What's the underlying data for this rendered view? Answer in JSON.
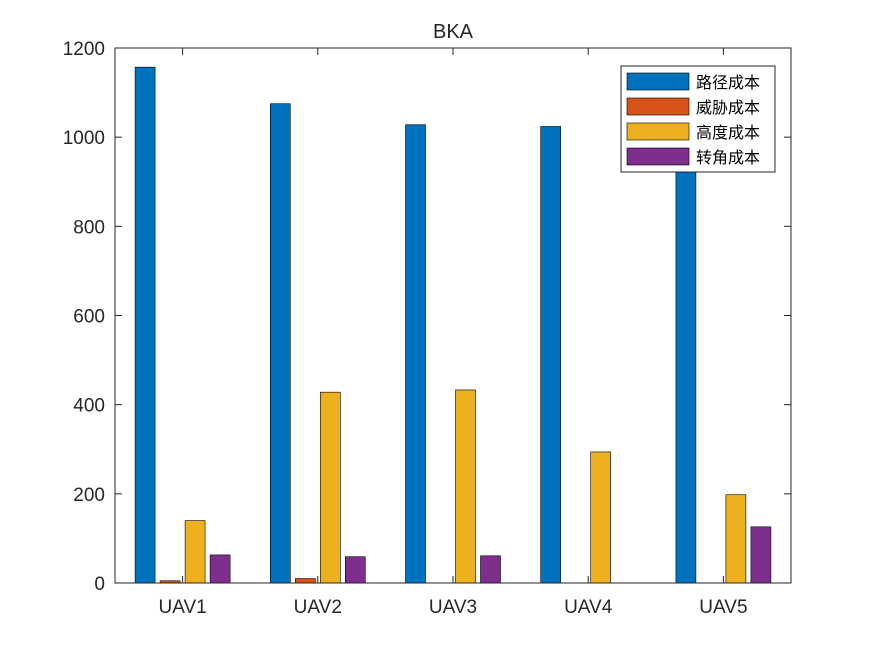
{
  "chart_data": {
    "type": "bar",
    "title": "BKA",
    "xlabel": "",
    "ylabel": "",
    "categories": [
      "UAV1",
      "UAV2",
      "UAV3",
      "UAV4",
      "UAV5"
    ],
    "ylim": [
      0,
      1200
    ],
    "yticks": [
      0,
      200,
      400,
      600,
      800,
      1000,
      1200
    ],
    "grid": false,
    "legend_position": "top-right",
    "series": [
      {
        "name": "路径成本",
        "color": "#0072BD",
        "values": [
          1157,
          1075,
          1028,
          1024,
          1010
        ]
      },
      {
        "name": "威胁成本",
        "color": "#D95319",
        "values": [
          5,
          10,
          0,
          0,
          0
        ]
      },
      {
        "name": "高度成本",
        "color": "#EDB120",
        "values": [
          140,
          428,
          433,
          294,
          198
        ]
      },
      {
        "name": "转角成本",
        "color": "#7E2F8E",
        "values": [
          63,
          59,
          61,
          0,
          126
        ]
      }
    ]
  }
}
